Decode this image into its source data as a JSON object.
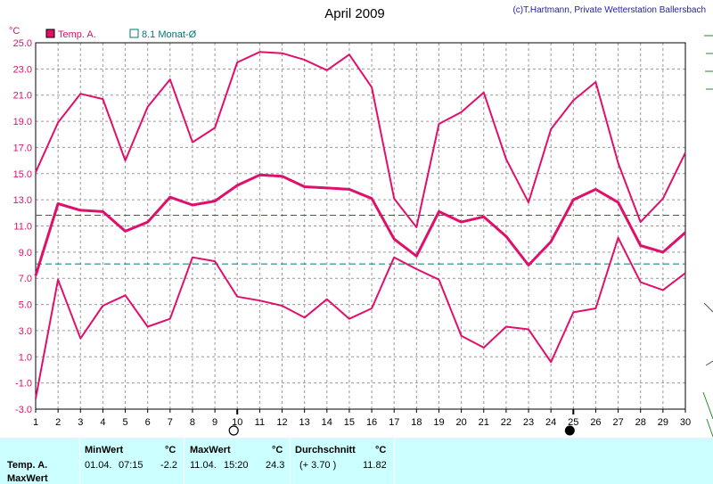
{
  "header": {
    "title": "April 2009",
    "credit": "(c)T.Hartmann, Private Wetterstation Ballersbach"
  },
  "chart_data": {
    "type": "line",
    "unit_label": "°C",
    "ylim": [
      -3.0,
      25.0
    ],
    "yticks": [
      "25.0",
      "23.0",
      "21.0",
      "19.0",
      "17.0",
      "15.0",
      "13.0",
      "11.0",
      "9.0",
      "7.0",
      "5.0",
      "3.0",
      "1.0",
      "-1.0",
      "-3.0"
    ],
    "x": [
      1,
      2,
      3,
      4,
      5,
      6,
      7,
      8,
      9,
      10,
      11,
      12,
      13,
      14,
      15,
      16,
      17,
      18,
      19,
      20,
      21,
      22,
      23,
      24,
      25,
      26,
      27,
      28,
      29,
      30
    ],
    "grid": true,
    "legend": [
      {
        "name": "Temp. A.",
        "color": "#e0106a",
        "marker": "filled-square"
      },
      {
        "name": "8.1 Monat-Ø",
        "color": "#007878",
        "marker": "open-square"
      }
    ],
    "series": [
      {
        "role": "max",
        "color": "#e0106a",
        "values": [
          15.1,
          18.9,
          21.1,
          20.7,
          16.0,
          20.1,
          22.2,
          17.4,
          18.5,
          23.5,
          24.3,
          24.2,
          23.7,
          22.9,
          24.1,
          21.6,
          13.1,
          10.9,
          18.8,
          19.7,
          21.2,
          16.1,
          12.8,
          18.4,
          20.6,
          22.0,
          15.8,
          11.3,
          13.1,
          16.6
        ]
      },
      {
        "role": "mean",
        "color": "#e0106a",
        "values": [
          7.2,
          12.7,
          12.2,
          12.1,
          10.6,
          11.3,
          13.2,
          12.6,
          12.9,
          14.1,
          14.9,
          14.8,
          14.0,
          13.9,
          13.8,
          13.1,
          10.0,
          8.7,
          12.1,
          11.3,
          11.7,
          10.2,
          8.0,
          9.8,
          13.0,
          13.8,
          12.8,
          9.5,
          9.0,
          10.5
        ]
      },
      {
        "role": "min",
        "color": "#e0106a",
        "values": [
          -2.2,
          6.9,
          2.4,
          4.9,
          5.7,
          3.3,
          3.9,
          8.6,
          8.3,
          5.6,
          5.3,
          4.9,
          4.0,
          5.4,
          3.9,
          4.7,
          8.6,
          7.7,
          6.9,
          2.6,
          1.7,
          3.3,
          3.1,
          0.6,
          4.4,
          4.7,
          10.1,
          6.7,
          6.1,
          7.4
        ]
      }
    ],
    "reference_lines": [
      {
        "value": 11.82,
        "color": "#a020a0"
      },
      {
        "value": 8.1,
        "color": "#007878"
      }
    ],
    "moon_phase_markers": [
      {
        "day": 10,
        "phase": "full"
      },
      {
        "day": 25,
        "phase": "new"
      }
    ]
  },
  "stats": {
    "row_labels": [
      "Temp. A.",
      "MaxWert"
    ],
    "min": {
      "header": "MinWert",
      "unit": "°C",
      "date": "01.04.",
      "time": "07:15",
      "value": "-2.2"
    },
    "max": {
      "header": "MaxWert",
      "unit": "°C",
      "date": "11.04.",
      "time": "15:20",
      "value": "24.3"
    },
    "avg": {
      "header": "Durchschnitt",
      "unit": "°C",
      "delta": "(+ 3.70 )",
      "value": "11.82"
    }
  }
}
